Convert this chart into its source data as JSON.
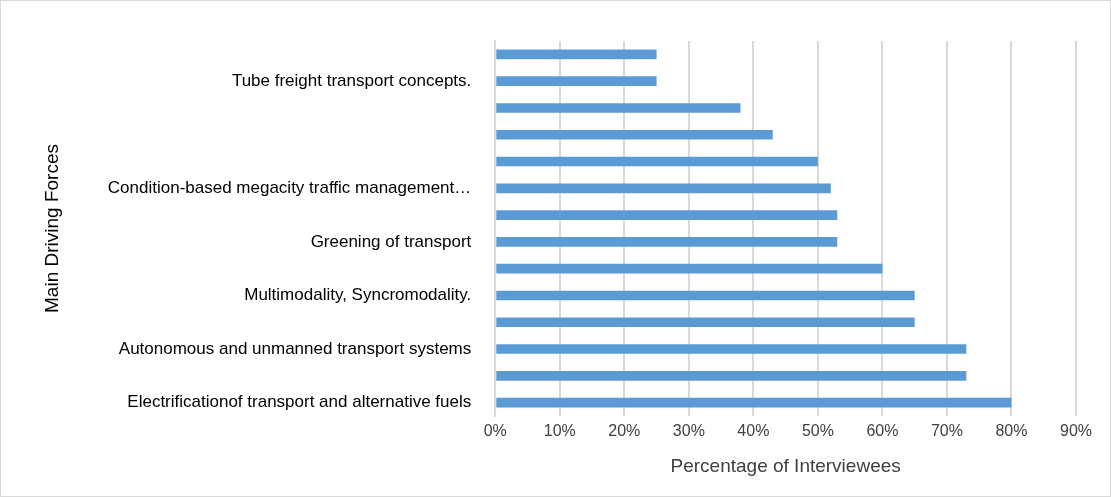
{
  "chart_data": {
    "type": "bar",
    "orientation": "horizontal",
    "categories": [
      null,
      "Tube freight transport concepts.",
      null,
      null,
      null,
      "Condition-based megacity traffic management…",
      null,
      "Greening of transport",
      null,
      "Multimodality, Syncromodality.",
      null,
      "Autonomous and unmanned transport systems",
      null,
      "Electrificationof transport and alternative fuels"
    ],
    "values": [
      25,
      25,
      38,
      43,
      50,
      52,
      53,
      53,
      60,
      65,
      65,
      73,
      73,
      80
    ],
    "color": "#5b9bd5",
    "xlabel": "Percentage of Interviewees",
    "ylabel": "Main Driving Forces",
    "xlim": [
      0,
      90
    ],
    "xticks": [
      {
        "value": 0,
        "label": "0%"
      },
      {
        "value": 10,
        "label": "10%"
      },
      {
        "value": 20,
        "label": "20%"
      },
      {
        "value": 30,
        "label": "30%"
      },
      {
        "value": 40,
        "label": "40%"
      },
      {
        "value": 50,
        "label": "50%"
      },
      {
        "value": 60,
        "label": "60%"
      },
      {
        "value": 70,
        "label": "70%"
      },
      {
        "value": 80,
        "label": "80%"
      },
      {
        "value": 90,
        "label": "90%"
      }
    ],
    "grid": "x",
    "legend": false
  }
}
